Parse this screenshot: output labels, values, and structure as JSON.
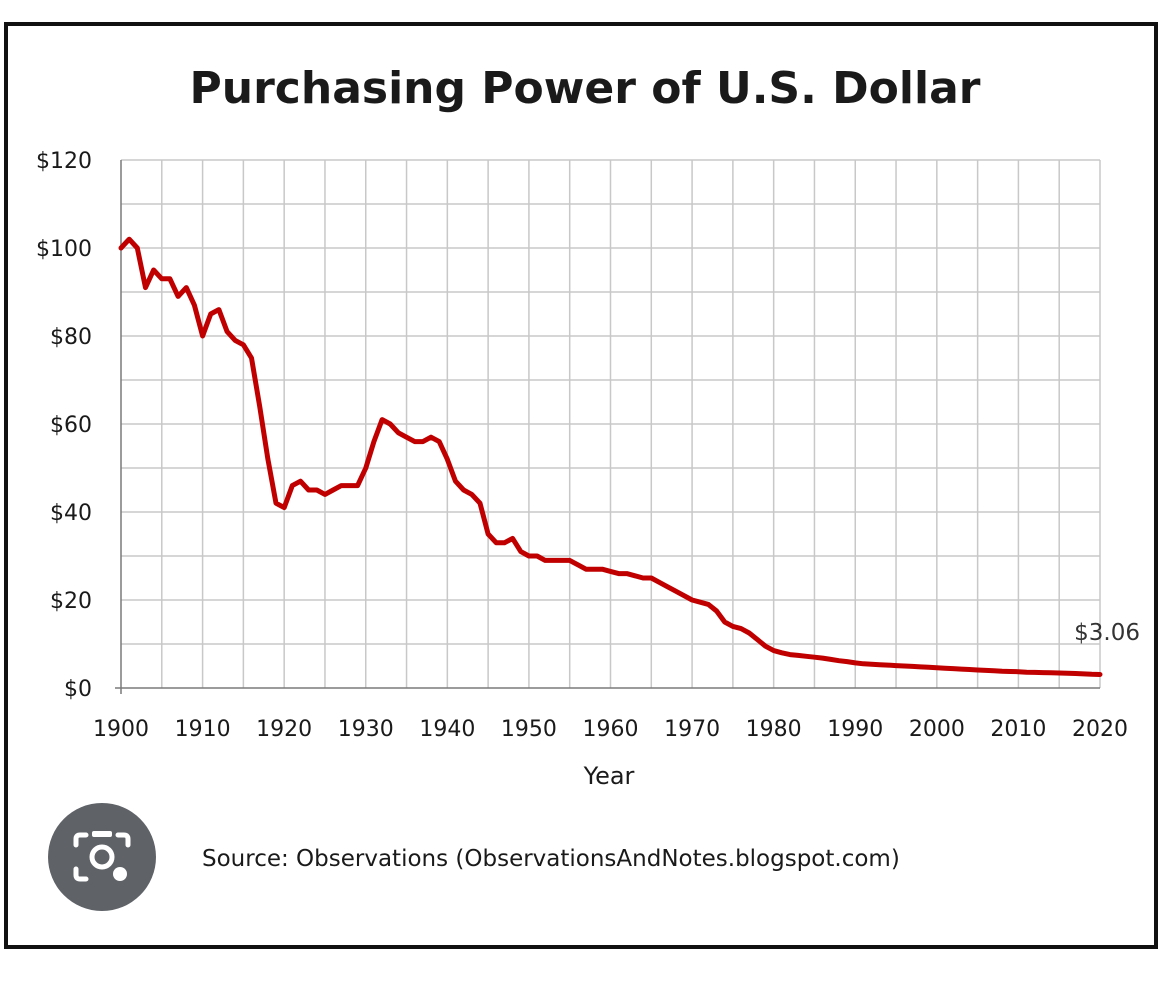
{
  "colors": {
    "series": "#c00000",
    "grid": "#c8c8c8",
    "text": "#1a1a1a",
    "frame": "#111111",
    "lens_button": "#5f6368"
  },
  "lens_icon": "camera-search-icon",
  "chart_data": {
    "type": "line",
    "title": "Purchasing Power of U.S. Dollar",
    "xlabel": "Year",
    "ylabel": "",
    "xlim": [
      1900,
      2020
    ],
    "ylim": [
      0,
      120
    ],
    "grid": true,
    "x_ticks": [
      "1900",
      "1910",
      "1920",
      "1930",
      "1940",
      "1950",
      "1960",
      "1970",
      "1980",
      "1990",
      "2000",
      "2010",
      "2020"
    ],
    "y_ticks": [
      "$0",
      "$20",
      "$40",
      "$60",
      "$80",
      "$100",
      "$120"
    ],
    "source": "Source: Observations (ObservationsAndNotes.blogspot.com)",
    "end_label": "$3.06",
    "series": [
      {
        "name": "Purchasing Power",
        "x": [
          1900,
          1901,
          1902,
          1903,
          1904,
          1905,
          1906,
          1907,
          1908,
          1909,
          1910,
          1911,
          1912,
          1913,
          1914,
          1915,
          1916,
          1917,
          1918,
          1919,
          1920,
          1921,
          1922,
          1923,
          1924,
          1925,
          1926,
          1927,
          1928,
          1929,
          1930,
          1931,
          1932,
          1933,
          1934,
          1935,
          1936,
          1937,
          1938,
          1939,
          1940,
          1941,
          1942,
          1943,
          1944,
          1945,
          1946,
          1947,
          1948,
          1949,
          1950,
          1951,
          1952,
          1953,
          1954,
          1955,
          1956,
          1957,
          1958,
          1959,
          1960,
          1961,
          1962,
          1963,
          1964,
          1965,
          1966,
          1967,
          1968,
          1969,
          1970,
          1971,
          1972,
          1973,
          1974,
          1975,
          1976,
          1977,
          1978,
          1979,
          1980,
          1981,
          1982,
          1983,
          1984,
          1985,
          1986,
          1987,
          1988,
          1989,
          1990,
          1991,
          1992,
          1993,
          1994,
          1995,
          1996,
          1997,
          1998,
          1999,
          2000,
          2001,
          2002,
          2003,
          2004,
          2005,
          2006,
          2007,
          2008,
          2009,
          2010,
          2011,
          2012,
          2013,
          2014,
          2015,
          2016,
          2017,
          2018,
          2019,
          2020
        ],
        "values": [
          100,
          102,
          100,
          91,
          95,
          93,
          93,
          89,
          91,
          87,
          80,
          85,
          86,
          81,
          79,
          78,
          75,
          64,
          52,
          42,
          41,
          46,
          47,
          45,
          45,
          44,
          45,
          46,
          46,
          46,
          50,
          56,
          61,
          60,
          58,
          57,
          56,
          56,
          57,
          56,
          52,
          47,
          45,
          44,
          42,
          35,
          33,
          33,
          34,
          31,
          30,
          30,
          29,
          29,
          29,
          29,
          28,
          27,
          27,
          27,
          26.5,
          26,
          26,
          25.5,
          25,
          25,
          24,
          23,
          22,
          21,
          20,
          19.5,
          19,
          17.5,
          15,
          14,
          13.5,
          12.5,
          11,
          9.5,
          8.5,
          8,
          7.6,
          7.4,
          7.2,
          7,
          6.8,
          6.5,
          6.2,
          6,
          5.7,
          5.5,
          5.4,
          5.3,
          5.2,
          5.1,
          5,
          4.9,
          4.8,
          4.7,
          4.6,
          4.5,
          4.4,
          4.3,
          4.2,
          4.1,
          4,
          3.9,
          3.8,
          3.75,
          3.7,
          3.6,
          3.55,
          3.5,
          3.45,
          3.4,
          3.35,
          3.3,
          3.2,
          3.12,
          3.06
        ]
      }
    ]
  }
}
